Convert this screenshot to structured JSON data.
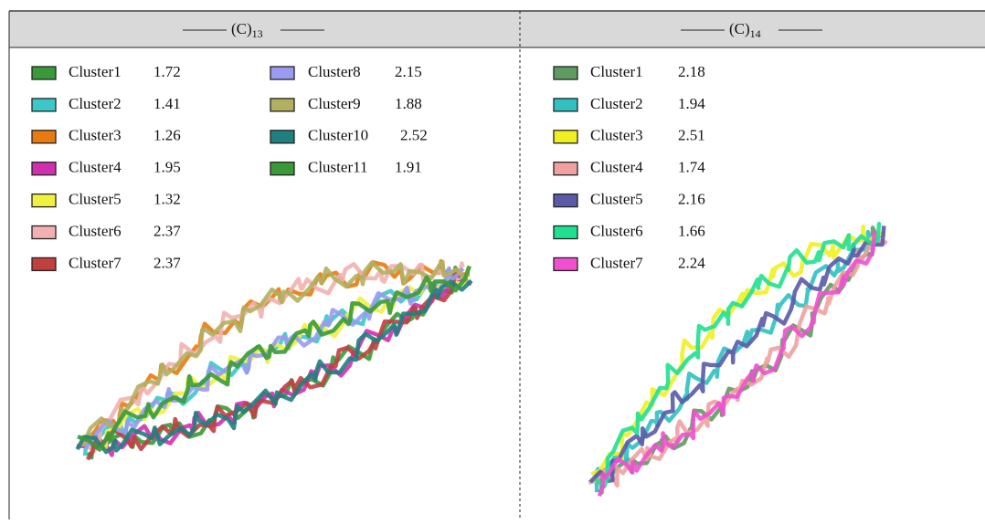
{
  "panels": [
    {
      "title": "(C)",
      "subscript": "13",
      "clusters": [
        {
          "name": "Cluster1",
          "value": 1.72,
          "color": "#3a9a3a"
        },
        {
          "name": "Cluster2",
          "value": 1.41,
          "color": "#3cc8c8"
        },
        {
          "name": "Cluster3",
          "value": 1.26,
          "color": "#e87a10"
        },
        {
          "name": "Cluster4",
          "value": 1.95,
          "color": "#d030b0"
        },
        {
          "name": "Cluster5",
          "value": 1.32,
          "color": "#f0f040"
        },
        {
          "name": "Cluster6",
          "value": 2.37,
          "color": "#f2b0b0"
        },
        {
          "name": "Cluster7",
          "value": 2.37,
          "color": "#c04040"
        },
        {
          "name": "Cluster8",
          "value": 2.15,
          "color": "#9a9af0"
        },
        {
          "name": "Cluster9",
          "value": 1.88,
          "color": "#b0b060"
        },
        {
          "name": "Cluster10",
          "value": 2.52,
          "color": "#208080"
        },
        {
          "name": "Cluster11",
          "value": 1.91,
          "color": "#3a9a3a"
        }
      ]
    },
    {
      "title": "(C)",
      "subscript": "14",
      "clusters": [
        {
          "name": "Cluster1",
          "value": 2.18,
          "color": "#609a60"
        },
        {
          "name": "Cluster2",
          "value": 1.94,
          "color": "#30c0c0"
        },
        {
          "name": "Cluster3",
          "value": 2.51,
          "color": "#f0f020"
        },
        {
          "name": "Cluster4",
          "value": 1.74,
          "color": "#f0a0a0"
        },
        {
          "name": "Cluster5",
          "value": 2.16,
          "color": "#5a5aa8"
        },
        {
          "name": "Cluster6",
          "value": 1.66,
          "color": "#20e090"
        },
        {
          "name": "Cluster7",
          "value": 2.24,
          "color": "#f050d0"
        }
      ]
    }
  ]
}
